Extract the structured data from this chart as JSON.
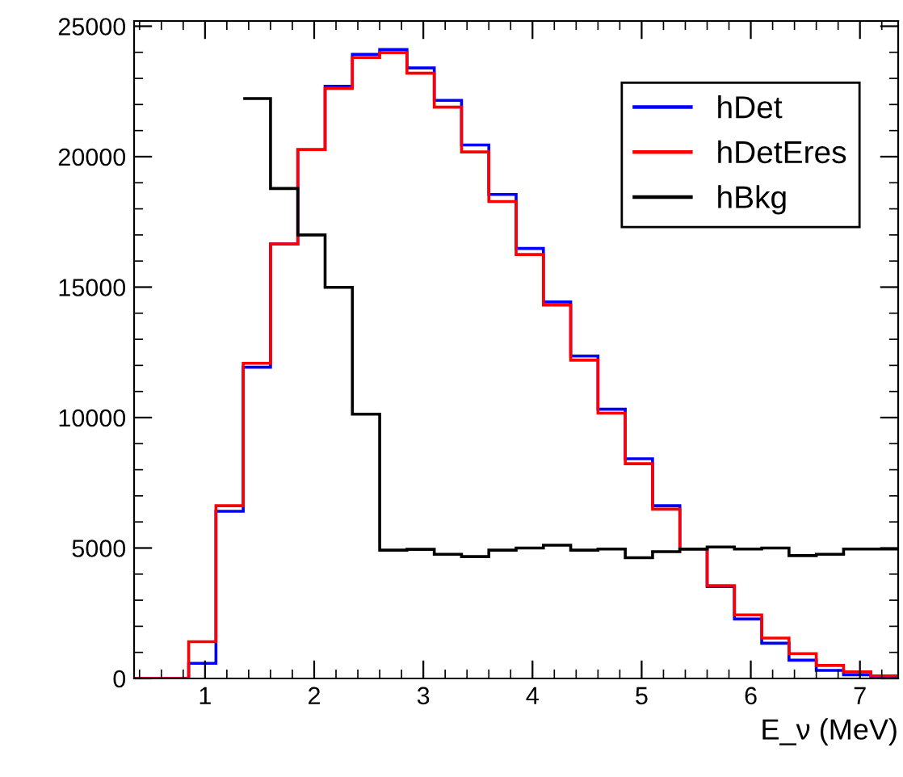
{
  "chart_data": {
    "type": "histogram",
    "xlabel": "E_ν (MeV)",
    "bins": [
      0.35,
      0.6,
      0.85,
      1.1,
      1.35,
      1.6,
      1.85,
      2.1,
      2.35,
      2.6,
      2.85,
      3.1,
      3.35,
      3.6,
      3.85,
      4.1,
      4.35,
      4.6,
      4.85,
      5.1,
      5.35,
      5.6,
      5.85,
      6.1,
      6.35,
      6.6,
      6.85,
      7.1,
      7.35
    ],
    "series": [
      {
        "name": "hDet",
        "color": "#0000ff",
        "values": [
          0,
          0,
          580,
          6410,
          11930,
          16650,
          20270,
          22700,
          23920,
          24110,
          23400,
          22160,
          20450,
          18550,
          16480,
          14430,
          12360,
          10320,
          8420,
          6620,
          4960,
          3520,
          2280,
          1350,
          700,
          310,
          140,
          30
        ]
      },
      {
        "name": "hDetEres",
        "color": "#ff0000",
        "values": [
          0,
          0,
          1410,
          6620,
          12080,
          16650,
          20270,
          22620,
          23800,
          23990,
          23200,
          21900,
          20180,
          18280,
          16250,
          14310,
          12200,
          10170,
          8230,
          6490,
          4960,
          3560,
          2440,
          1550,
          950,
          500,
          250,
          100
        ]
      },
      {
        "name": "hBkg",
        "color": "#000000",
        "bins": [
          1.35,
          1.6,
          1.85,
          2.1,
          2.35,
          2.6,
          2.85,
          3.1,
          3.35,
          3.6,
          3.85,
          4.1,
          4.35,
          4.6,
          4.85,
          5.1,
          5.35,
          5.6,
          5.85,
          6.1,
          6.35,
          6.6,
          6.85,
          7.1,
          7.35
        ],
        "values": [
          22230,
          18780,
          17000,
          14990,
          10130,
          4920,
          4950,
          4760,
          4670,
          4920,
          5000,
          5110,
          4920,
          4960,
          4630,
          4860,
          4960,
          5040,
          4960,
          5000,
          4710,
          4760,
          4960,
          4960
        ]
      }
    ],
    "xlim": [
      0.35,
      7.35
    ],
    "ylim": [
      0,
      25200
    ],
    "xticks": [
      1,
      2,
      3,
      4,
      5,
      6,
      7
    ],
    "yticks": [
      0,
      5000,
      10000,
      15000,
      20000,
      25000
    ],
    "grid": false,
    "legend": "top right"
  }
}
